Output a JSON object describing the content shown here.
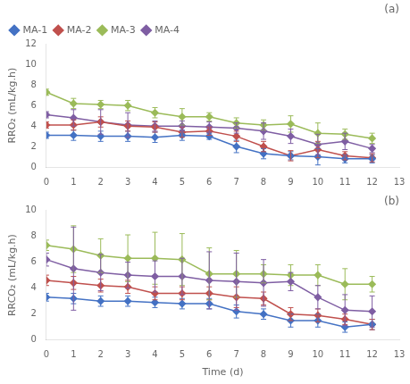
{
  "chart_data": [
    {
      "type": "line",
      "annotations": [
        "(a)"
      ],
      "y_label": "RRO₂ (mL/kg.h)",
      "x": [
        0,
        1,
        2,
        3,
        4,
        5,
        6,
        7,
        8,
        9,
        10,
        11,
        12
      ],
      "xlim": [
        0,
        13
      ],
      "xticks": [
        0,
        1,
        2,
        3,
        4,
        5,
        6,
        7,
        8,
        9,
        10,
        11,
        12,
        13
      ],
      "ylim": [
        0,
        12
      ],
      "yticks": [
        0,
        2,
        4,
        6,
        8,
        10,
        12
      ],
      "grid": false,
      "legend": "upper left",
      "marker": "diamond",
      "series": [
        {
          "name": "MA-1",
          "color": "#4472c4",
          "values": [
            3.1,
            3.1,
            3.0,
            3.0,
            2.9,
            3.1,
            3.0,
            2.0,
            1.3,
            1.1,
            1.0,
            0.8,
            0.8
          ],
          "errors": [
            0.3,
            0.5,
            0.5,
            0.5,
            0.5,
            0.5,
            0.3,
            0.6,
            0.5,
            0.4,
            0.8,
            0.4,
            0.4
          ]
        },
        {
          "name": "MA-2",
          "color": "#c0504d",
          "values": [
            4.1,
            4.1,
            4.4,
            4.0,
            3.9,
            3.4,
            3.5,
            3.0,
            2.0,
            1.1,
            1.7,
            1.1,
            0.9
          ],
          "errors": [
            0.3,
            0.5,
            0.5,
            0.5,
            0.5,
            0.5,
            0.4,
            0.5,
            0.5,
            0.5,
            0.8,
            0.4,
            0.4
          ]
        },
        {
          "name": "MA-3",
          "color": "#9bbb59",
          "values": [
            7.3,
            6.2,
            6.1,
            6.0,
            5.3,
            4.9,
            4.9,
            4.3,
            4.1,
            4.2,
            3.3,
            3.2,
            2.8
          ],
          "errors": [
            0.3,
            0.5,
            0.4,
            0.5,
            0.5,
            0.8,
            0.4,
            0.5,
            0.5,
            0.8,
            1.0,
            0.5,
            0.5
          ]
        },
        {
          "name": "MA-4",
          "color": "#7f5ea3",
          "values": [
            5.1,
            4.8,
            4.4,
            4.1,
            4.0,
            4.0,
            3.9,
            3.8,
            3.5,
            3.0,
            2.2,
            2.5,
            1.8
          ],
          "errors": [
            0.3,
            0.8,
            1.2,
            1.2,
            0.5,
            0.5,
            0.5,
            0.5,
            0.8,
            0.7,
            1.0,
            0.8,
            0.4
          ]
        }
      ]
    },
    {
      "type": "line",
      "annotations": [
        "(b)"
      ],
      "y_label": "RRCO₂ (mL/kg.h)",
      "x_label": "Time (d)",
      "x": [
        0,
        1,
        2,
        3,
        4,
        5,
        6,
        7,
        8,
        9,
        10,
        11,
        12
      ],
      "xlim": [
        0,
        13
      ],
      "xticks": [
        0,
        1,
        2,
        3,
        4,
        5,
        6,
        7,
        8,
        9,
        10,
        11,
        12,
        13
      ],
      "ylim": [
        0,
        10
      ],
      "yticks": [
        0,
        2,
        4,
        6,
        8,
        10
      ],
      "grid": false,
      "marker": "diamond",
      "series": [
        {
          "name": "MA-1",
          "color": "#4472c4",
          "values": [
            3.3,
            3.2,
            3.0,
            3.0,
            2.9,
            2.8,
            2.8,
            2.2,
            2.0,
            1.5,
            1.5,
            1.0,
            1.2
          ],
          "errors": [
            0.3,
            0.4,
            0.4,
            0.4,
            0.4,
            0.4,
            0.4,
            0.5,
            0.4,
            0.5,
            0.5,
            0.4,
            0.4
          ]
        },
        {
          "name": "MA-2",
          "color": "#c0504d",
          "values": [
            4.6,
            4.4,
            4.2,
            4.1,
            3.6,
            3.6,
            3.6,
            3.3,
            3.2,
            2.0,
            1.9,
            1.6,
            1.2
          ],
          "errors": [
            0.4,
            0.5,
            0.5,
            0.5,
            0.5,
            0.5,
            0.5,
            0.8,
            0.5,
            0.5,
            0.5,
            0.4,
            0.4
          ]
        },
        {
          "name": "MA-3",
          "color": "#9bbb59",
          "values": [
            7.3,
            7.0,
            6.5,
            6.3,
            6.3,
            6.2,
            5.1,
            5.1,
            5.1,
            5.0,
            5.0,
            4.3,
            4.3
          ],
          "errors": [
            0.4,
            1.8,
            1.3,
            1.8,
            2.0,
            2.0,
            2.0,
            1.8,
            0.7,
            0.8,
            0.8,
            1.2,
            0.6
          ]
        },
        {
          "name": "MA-4",
          "color": "#7f5ea3",
          "values": [
            6.2,
            5.5,
            5.2,
            5.0,
            4.9,
            4.9,
            4.6,
            4.5,
            4.4,
            4.5,
            3.3,
            2.3,
            2.2
          ],
          "errors": [
            0.5,
            3.2,
            1.4,
            1.0,
            1.2,
            1.4,
            2.2,
            2.2,
            1.8,
            0.7,
            0.9,
            1.2,
            1.2
          ]
        }
      ]
    }
  ]
}
